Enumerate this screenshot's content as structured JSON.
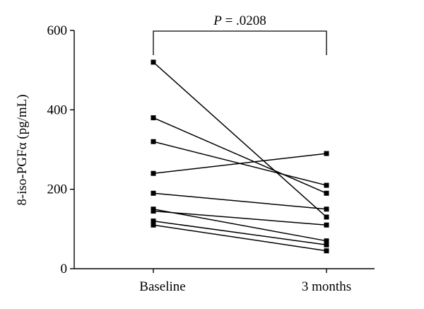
{
  "chart_data": {
    "type": "line",
    "categories": [
      "Baseline",
      "3 months"
    ],
    "ylabel": "8-iso-PGFα (pg/mL)",
    "ylim": [
      0,
      600
    ],
    "yticks": [
      0,
      200,
      400,
      600
    ],
    "grid": false,
    "legend": "none",
    "line_color": "#000000",
    "marker": "square",
    "series": [
      {
        "values": [
          520,
          130
        ]
      },
      {
        "values": [
          380,
          190
        ]
      },
      {
        "values": [
          320,
          210
        ]
      },
      {
        "values": [
          240,
          290
        ]
      },
      {
        "values": [
          190,
          150
        ]
      },
      {
        "values": [
          150,
          70
        ]
      },
      {
        "values": [
          145,
          110
        ]
      },
      {
        "values": [
          120,
          60
        ]
      },
      {
        "values": [
          110,
          45
        ]
      }
    ],
    "annotation": {
      "p_italic": "P",
      "p_rest": " = .0208"
    }
  }
}
